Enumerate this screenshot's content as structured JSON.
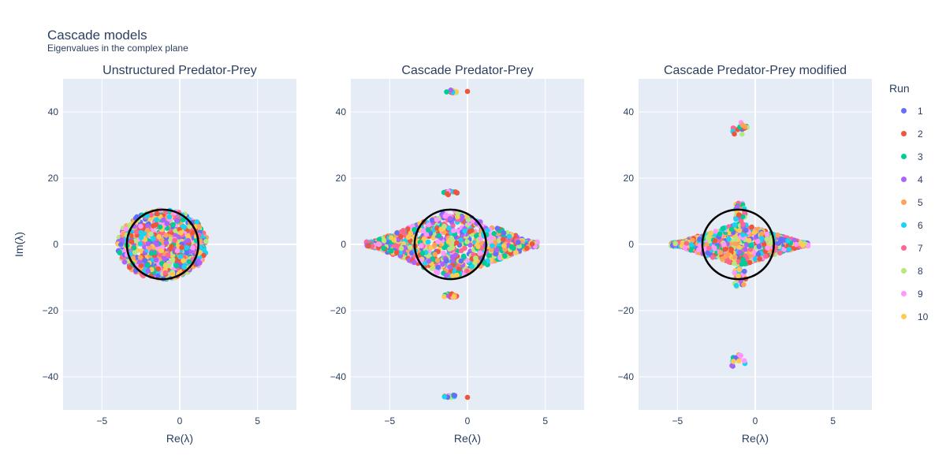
{
  "title": "Cascade models",
  "subtitle": "Eigenvalues in the complex plane",
  "legend": {
    "title": "Run",
    "entries": [
      {
        "label": "1",
        "color": "#636efa"
      },
      {
        "label": "2",
        "color": "#EF553B"
      },
      {
        "label": "3",
        "color": "#00cc96"
      },
      {
        "label": "4",
        "color": "#ab63fa"
      },
      {
        "label": "5",
        "color": "#FFA15A"
      },
      {
        "label": "6",
        "color": "#19d3f3"
      },
      {
        "label": "7",
        "color": "#FF6692"
      },
      {
        "label": "8",
        "color": "#B6E880"
      },
      {
        "label": "9",
        "color": "#FF97FF"
      },
      {
        "label": "10",
        "color": "#FECB52"
      }
    ]
  },
  "chart_data": [
    {
      "type": "scatter",
      "title": "Unstructured Predator-Prey",
      "xlabel": "Re(λ)",
      "ylabel": "Im(λ)",
      "xlim": [
        -7.5,
        7.5
      ],
      "ylim": [
        -50,
        50
      ],
      "xticks": [
        {
          "value": -5,
          "label": "−5"
        },
        {
          "value": 0,
          "label": "0"
        },
        {
          "value": 5,
          "label": "5"
        }
      ],
      "yticks": [
        {
          "value": -40,
          "label": "−40"
        },
        {
          "value": -20,
          "label": "−20"
        },
        {
          "value": 0,
          "label": "0"
        },
        {
          "value": 20,
          "label": "20"
        },
        {
          "value": 40,
          "label": "40"
        }
      ],
      "grid": true,
      "circle": {
        "center": [
          -1.1,
          0
        ],
        "rx": 2.3,
        "ry": 10.5
      },
      "clusters": [
        {
          "shape": "ellipse",
          "cx": -1.1,
          "cy": 0,
          "rx": 2.9,
          "ry": 10.5,
          "count": 900
        }
      ]
    },
    {
      "type": "scatter",
      "title": "Cascade Predator-Prey",
      "xlabel": "Re(λ)",
      "ylabel": "",
      "xlim": [
        -7.5,
        7.5
      ],
      "ylim": [
        -50,
        50
      ],
      "xticks": [
        {
          "value": -5,
          "label": "−5"
        },
        {
          "value": 0,
          "label": "0"
        },
        {
          "value": 5,
          "label": "5"
        }
      ],
      "yticks": [
        {
          "value": -40,
          "label": "−40"
        },
        {
          "value": -20,
          "label": "−20"
        },
        {
          "value": 0,
          "label": "0"
        },
        {
          "value": 20,
          "label": "20"
        },
        {
          "value": 40,
          "label": "40"
        }
      ],
      "grid": true,
      "circle": {
        "center": [
          -1.1,
          0
        ],
        "rx": 2.3,
        "ry": 10.5
      },
      "clusters": [
        {
          "shape": "diamond",
          "cx": -1.0,
          "cy": 0,
          "rx": 5.5,
          "ry": 10.5,
          "count": 1100
        },
        {
          "shape": "cluster",
          "cx": -1.1,
          "cy": 46,
          "rx": 0.4,
          "ry": 0.6,
          "count": 12
        },
        {
          "shape": "cluster",
          "cx": -1.1,
          "cy": -46,
          "rx": 0.4,
          "ry": 0.6,
          "count": 12
        },
        {
          "shape": "cluster",
          "cx": -1.1,
          "cy": 15.5,
          "rx": 0.45,
          "ry": 0.6,
          "count": 14
        },
        {
          "shape": "cluster",
          "cx": -1.1,
          "cy": -15.5,
          "rx": 0.45,
          "ry": 0.6,
          "count": 14
        }
      ],
      "extra_points": [
        [
          0.0,
          46.2
        ],
        [
          0.0,
          -46.2
        ]
      ]
    },
    {
      "type": "scatter",
      "title": "Cascade Predator-Prey modified",
      "xlabel": "Re(λ)",
      "ylabel": "",
      "xlim": [
        -7.5,
        7.5
      ],
      "ylim": [
        -50,
        50
      ],
      "xticks": [
        {
          "value": -5,
          "label": "−5"
        },
        {
          "value": 0,
          "label": "0"
        },
        {
          "value": 5,
          "label": "5"
        }
      ],
      "yticks": [
        {
          "value": -40,
          "label": "−40"
        },
        {
          "value": -20,
          "label": "−20"
        },
        {
          "value": 0,
          "label": "0"
        },
        {
          "value": 20,
          "label": "20"
        },
        {
          "value": 40,
          "label": "40"
        }
      ],
      "grid": true,
      "circle": {
        "center": [
          -1.1,
          0
        ],
        "rx": 2.3,
        "ry": 10.5
      },
      "clusters": [
        {
          "shape": "diamond",
          "cx": -1.0,
          "cy": 0,
          "rx": 4.4,
          "ry": 6.5,
          "count": 1000
        },
        {
          "shape": "cluster",
          "cx": -1.1,
          "cy": 35,
          "rx": 0.6,
          "ry": 2.2,
          "count": 14
        },
        {
          "shape": "cluster",
          "cx": -1.1,
          "cy": -35,
          "rx": 0.6,
          "ry": 2.2,
          "count": 14
        },
        {
          "shape": "cluster",
          "cx": -1.0,
          "cy": 10,
          "rx": 0.4,
          "ry": 3.2,
          "count": 28
        },
        {
          "shape": "cluster",
          "cx": -1.0,
          "cy": -10,
          "rx": 0.4,
          "ry": 3.2,
          "count": 28
        }
      ]
    }
  ]
}
